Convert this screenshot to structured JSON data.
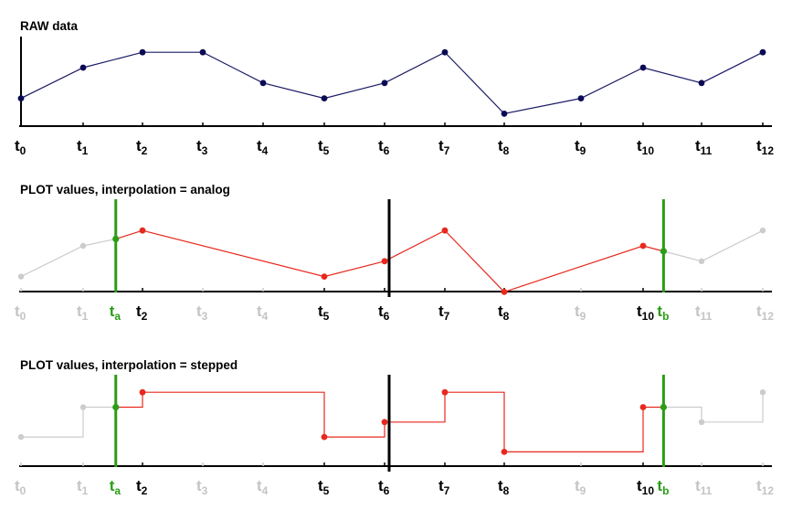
{
  "colors": {
    "raw_line": "#1a1a66",
    "raw_point": "#0a0a55",
    "active": "#e8281e",
    "inactive": "#cccccc",
    "inactive_label": "#c4c4c4",
    "cursor": "#2a9d15",
    "divider": "#000000",
    "axis": "#000000"
  },
  "tick_prefix": "t",
  "raw_values": [
    3,
    5,
    6,
    6,
    4,
    3,
    4,
    6,
    2,
    3,
    5,
    4,
    6
  ],
  "panels": [
    {
      "id": "raw",
      "title": "RAW data",
      "mode": "raw",
      "ticks": [
        {
          "sub": "0",
          "state": "active"
        },
        {
          "sub": "1",
          "state": "active"
        },
        {
          "sub": "2",
          "state": "active"
        },
        {
          "sub": "3",
          "state": "active"
        },
        {
          "sub": "4",
          "state": "active"
        },
        {
          "sub": "5",
          "state": "active"
        },
        {
          "sub": "6",
          "state": "active"
        },
        {
          "sub": "7",
          "state": "active"
        },
        {
          "sub": "8",
          "state": "active"
        },
        {
          "sub": "9",
          "state": "active"
        },
        {
          "sub": "10",
          "state": "active"
        },
        {
          "sub": "11",
          "state": "active"
        },
        {
          "sub": "12",
          "state": "active"
        }
      ]
    },
    {
      "id": "analog",
      "title": "PLOT values, interpolation = analog",
      "mode": "analog",
      "active_indices": [
        2,
        5,
        6,
        7,
        8,
        10
      ],
      "cursor_a": {
        "label_sub": "a",
        "at": 1.55,
        "value": 5.45
      },
      "cursor_b": {
        "label_sub": "b",
        "at": 10.35,
        "value": 4.65
      },
      "ticks": [
        {
          "sub": "0",
          "state": "inactive"
        },
        {
          "sub": "1",
          "state": "inactive"
        },
        {
          "sub": "a",
          "state": "cursor"
        },
        {
          "sub": "2",
          "state": "active"
        },
        {
          "sub": "3",
          "state": "inactive"
        },
        {
          "sub": "4",
          "state": "inactive"
        },
        {
          "sub": "5",
          "state": "active"
        },
        {
          "sub": "6",
          "state": "active"
        },
        {
          "sub": "7",
          "state": "active"
        },
        {
          "sub": "8",
          "state": "active"
        },
        {
          "sub": "9",
          "state": "inactive"
        },
        {
          "sub": "10",
          "state": "active"
        },
        {
          "sub": "b",
          "state": "cursor"
        },
        {
          "sub": "11",
          "state": "inactive"
        },
        {
          "sub": "12",
          "state": "inactive"
        }
      ]
    },
    {
      "id": "stepped",
      "title": "PLOT values, interpolation = stepped",
      "mode": "stepped",
      "active_indices": [
        2,
        5,
        6,
        7,
        8,
        10
      ],
      "cursor_a": {
        "label_sub": "a",
        "at": 1.55,
        "value": 5
      },
      "cursor_b": {
        "label_sub": "b",
        "at": 10.35,
        "value": 5
      },
      "ticks": [
        {
          "sub": "0",
          "state": "inactive"
        },
        {
          "sub": "1",
          "state": "inactive"
        },
        {
          "sub": "a",
          "state": "cursor"
        },
        {
          "sub": "2",
          "state": "active"
        },
        {
          "sub": "3",
          "state": "inactive"
        },
        {
          "sub": "4",
          "state": "inactive"
        },
        {
          "sub": "5",
          "state": "active"
        },
        {
          "sub": "6",
          "state": "active"
        },
        {
          "sub": "7",
          "state": "active"
        },
        {
          "sub": "8",
          "state": "active"
        },
        {
          "sub": "9",
          "state": "inactive"
        },
        {
          "sub": "10",
          "state": "active"
        },
        {
          "sub": "b",
          "state": "cursor"
        },
        {
          "sub": "11",
          "state": "inactive"
        },
        {
          "sub": "12",
          "state": "inactive"
        }
      ]
    }
  ]
}
